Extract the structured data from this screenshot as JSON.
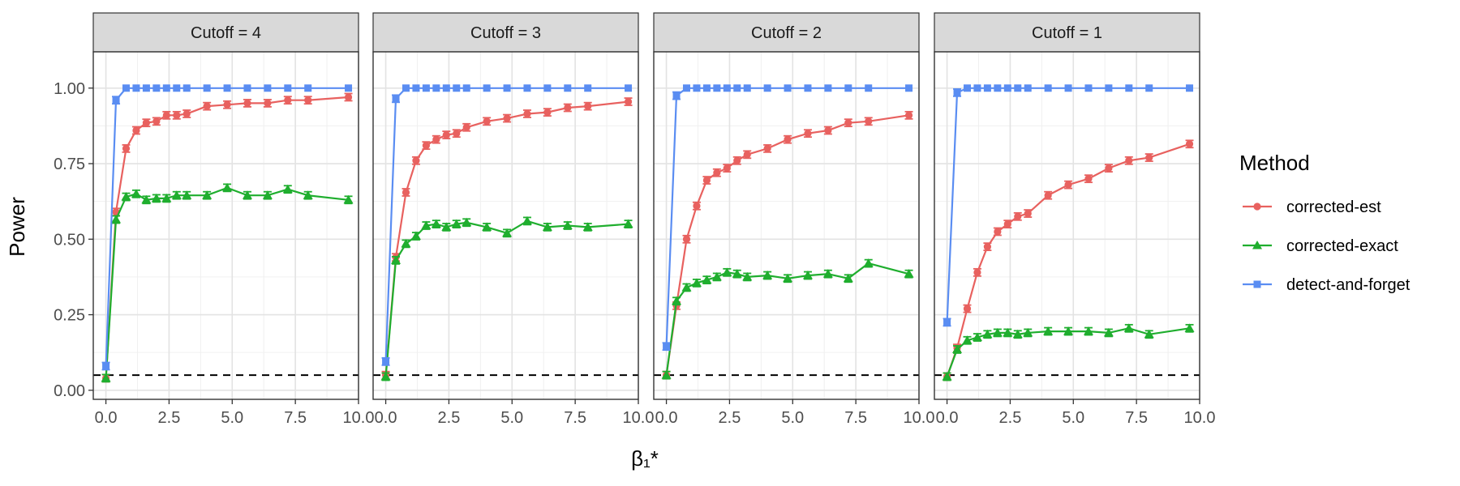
{
  "chart_data": {
    "type": "line",
    "ylabel": "Power",
    "xlabel": "β₁*",
    "xlim": [
      -0.5,
      10.0
    ],
    "ylim": [
      -0.03,
      1.12
    ],
    "x_ticks": [
      0.0,
      2.5,
      5.0,
      7.5,
      10.0
    ],
    "x_tick_labels": [
      "0.0",
      "2.5",
      "5.0",
      "7.5",
      "10.0"
    ],
    "y_ticks": [
      0.0,
      0.25,
      0.5,
      0.75,
      1.0
    ],
    "y_tick_labels": [
      "0.00",
      "0.25",
      "0.50",
      "0.75",
      "1.00"
    ],
    "reference_line": 0.05,
    "grid": true,
    "legend": {
      "title": "Method",
      "placement": "right",
      "entries": [
        "corrected-est",
        "corrected-exact",
        "detect-and-forget"
      ]
    },
    "colors": {
      "corrected-est": "#E8615F",
      "corrected-exact": "#1FAE2E",
      "detect-and-forget": "#5A8DF2"
    },
    "markers": {
      "corrected-est": "circle",
      "corrected-exact": "triangle",
      "detect-and-forget": "square"
    },
    "error_bar_halfwidth": 0.012,
    "x": [
      0,
      0.4,
      0.8,
      1.2,
      1.6,
      2.0,
      2.4,
      2.8,
      3.2,
      4.0,
      4.8,
      5.6,
      6.4,
      7.2,
      8.0,
      9.6
    ],
    "panels": [
      {
        "label": "Cutoff = 4",
        "series": [
          {
            "name": "corrected-est",
            "values": [
              0.04,
              0.59,
              0.8,
              0.86,
              0.885,
              0.89,
              0.91,
              0.91,
              0.915,
              0.94,
              0.945,
              0.95,
              0.95,
              0.96,
              0.96,
              0.97
            ]
          },
          {
            "name": "corrected-exact",
            "values": [
              0.04,
              0.565,
              0.64,
              0.65,
              0.63,
              0.635,
              0.635,
              0.645,
              0.645,
              0.645,
              0.67,
              0.645,
              0.645,
              0.665,
              0.645,
              0.63
            ]
          },
          {
            "name": "detect-and-forget",
            "values": [
              0.08,
              0.96,
              1,
              1,
              1,
              1,
              1,
              1,
              1,
              1,
              1,
              1,
              1,
              1,
              1,
              1
            ]
          }
        ]
      },
      {
        "label": "Cutoff = 3",
        "series": [
          {
            "name": "corrected-est",
            "values": [
              0.05,
              0.44,
              0.655,
              0.76,
              0.81,
              0.83,
              0.845,
              0.85,
              0.87,
              0.89,
              0.9,
              0.915,
              0.92,
              0.935,
              0.94,
              0.955
            ]
          },
          {
            "name": "corrected-exact",
            "values": [
              0.045,
              0.43,
              0.485,
              0.51,
              0.545,
              0.55,
              0.54,
              0.55,
              0.555,
              0.54,
              0.52,
              0.56,
              0.54,
              0.545,
              0.54,
              0.55
            ]
          },
          {
            "name": "detect-and-forget",
            "values": [
              0.095,
              0.965,
              1,
              1,
              1,
              1,
              1,
              1,
              1,
              1,
              1,
              1,
              1,
              1,
              1,
              1
            ]
          }
        ]
      },
      {
        "label": "Cutoff = 2",
        "series": [
          {
            "name": "corrected-est",
            "values": [
              0.05,
              0.28,
              0.5,
              0.61,
              0.695,
              0.72,
              0.735,
              0.76,
              0.78,
              0.8,
              0.83,
              0.85,
              0.86,
              0.885,
              0.89,
              0.91
            ]
          },
          {
            "name": "corrected-exact",
            "values": [
              0.05,
              0.295,
              0.34,
              0.355,
              0.365,
              0.375,
              0.39,
              0.385,
              0.375,
              0.38,
              0.37,
              0.38,
              0.385,
              0.37,
              0.42,
              0.385
            ]
          },
          {
            "name": "detect-and-forget",
            "values": [
              0.145,
              0.975,
              1,
              1,
              1,
              1,
              1,
              1,
              1,
              1,
              1,
              1,
              1,
              1,
              1,
              1
            ]
          }
        ]
      },
      {
        "label": "Cutoff = 1",
        "series": [
          {
            "name": "corrected-est",
            "values": [
              0.045,
              0.14,
              0.27,
              0.39,
              0.475,
              0.525,
              0.55,
              0.575,
              0.585,
              0.645,
              0.68,
              0.7,
              0.735,
              0.76,
              0.77,
              0.815
            ]
          },
          {
            "name": "corrected-exact",
            "values": [
              0.045,
              0.135,
              0.165,
              0.175,
              0.185,
              0.19,
              0.19,
              0.185,
              0.19,
              0.195,
              0.195,
              0.195,
              0.19,
              0.205,
              0.185,
              0.205
            ]
          },
          {
            "name": "detect-and-forget",
            "values": [
              0.225,
              0.985,
              1,
              1,
              1,
              1,
              1,
              1,
              1,
              1,
              1,
              1,
              1,
              1,
              1,
              1
            ]
          }
        ]
      }
    ]
  }
}
